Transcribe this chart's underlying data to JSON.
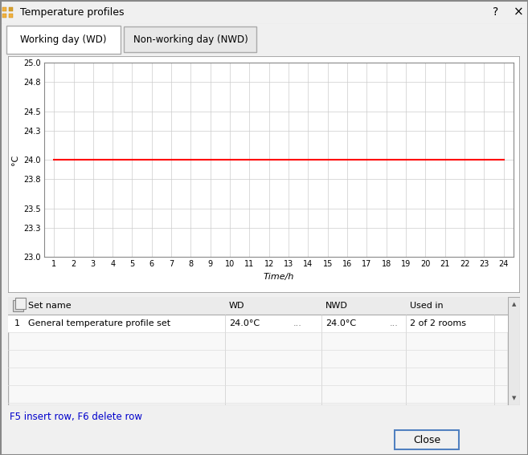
{
  "title_bar": "Temperature profiles",
  "tab_active": "Working day (WD)",
  "tab_inactive": "Non-working day (NWD)",
  "ylabel": "°C",
  "xlabel": "Time/h",
  "ylim": [
    23.0,
    25.0
  ],
  "yticks": [
    23.0,
    23.3,
    23.5,
    23.8,
    24.0,
    24.3,
    24.5,
    24.8,
    25.0
  ],
  "xticks": [
    1,
    2,
    3,
    4,
    5,
    6,
    7,
    8,
    9,
    10,
    11,
    12,
    13,
    14,
    15,
    16,
    17,
    18,
    19,
    20,
    21,
    22,
    23,
    24
  ],
  "line_y": 24.0,
  "line_color": "#ff0000",
  "line_width": 1.5,
  "plot_bg": "#ffffff",
  "dialog_bg": "#f0f0f0",
  "grid_color": "#cccccc",
  "border_color": "#999999",
  "table_header": [
    "Set name",
    "WD",
    "NWD",
    "Used in"
  ],
  "table_row1_num": "1",
  "table_row1_name": "General temperature profile set",
  "table_row1_wd": "24.0°C",
  "table_row1_nwd": "24.0°C",
  "table_row1_used": "2 of 2 rooms",
  "table_dots": "...",
  "footer_text": "F5 insert row, F6 delete row",
  "footer_color": "#0000cc",
  "close_btn": "Close",
  "title_bar_bg": "#ffffff",
  "dialog_outer_bg": "#f0f0f0",
  "active_tab_bg": "#ffffff",
  "inactive_tab_bg": "#e8e8e8",
  "tab_border": "#aaaaaa",
  "scrollbar_bg": "#d8d8d8",
  "scrollbar_border": "#aaaaaa"
}
